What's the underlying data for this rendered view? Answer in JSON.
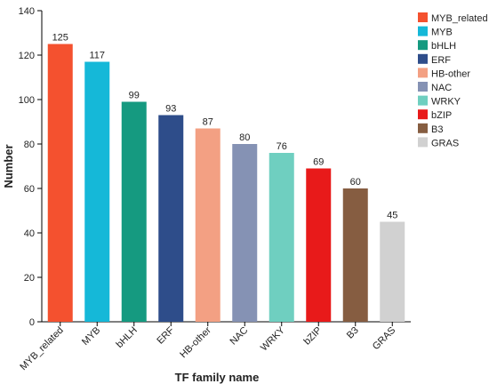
{
  "chart_data": {
    "type": "bar",
    "title": "",
    "xlabel": "TF family name",
    "ylabel": "Number",
    "ylim": [
      0,
      140
    ],
    "yticks": [
      0,
      20,
      40,
      60,
      80,
      100,
      120,
      140
    ],
    "categories": [
      "MYB_related",
      "MYB",
      "bHLH",
      "ERF",
      "HB-other",
      "NAC",
      "WRKY",
      "bZIP",
      "B3",
      "GRAS"
    ],
    "values": [
      125,
      117,
      99,
      93,
      87,
      80,
      76,
      69,
      60,
      45
    ],
    "colors": [
      "#F4512F",
      "#15B8D8",
      "#159A80",
      "#2E4D8A",
      "#F3A083",
      "#8592B4",
      "#6FCFC0",
      "#E81A1A",
      "#865D41",
      "#D1D1D1"
    ],
    "legend_position": "right",
    "grid": false
  }
}
